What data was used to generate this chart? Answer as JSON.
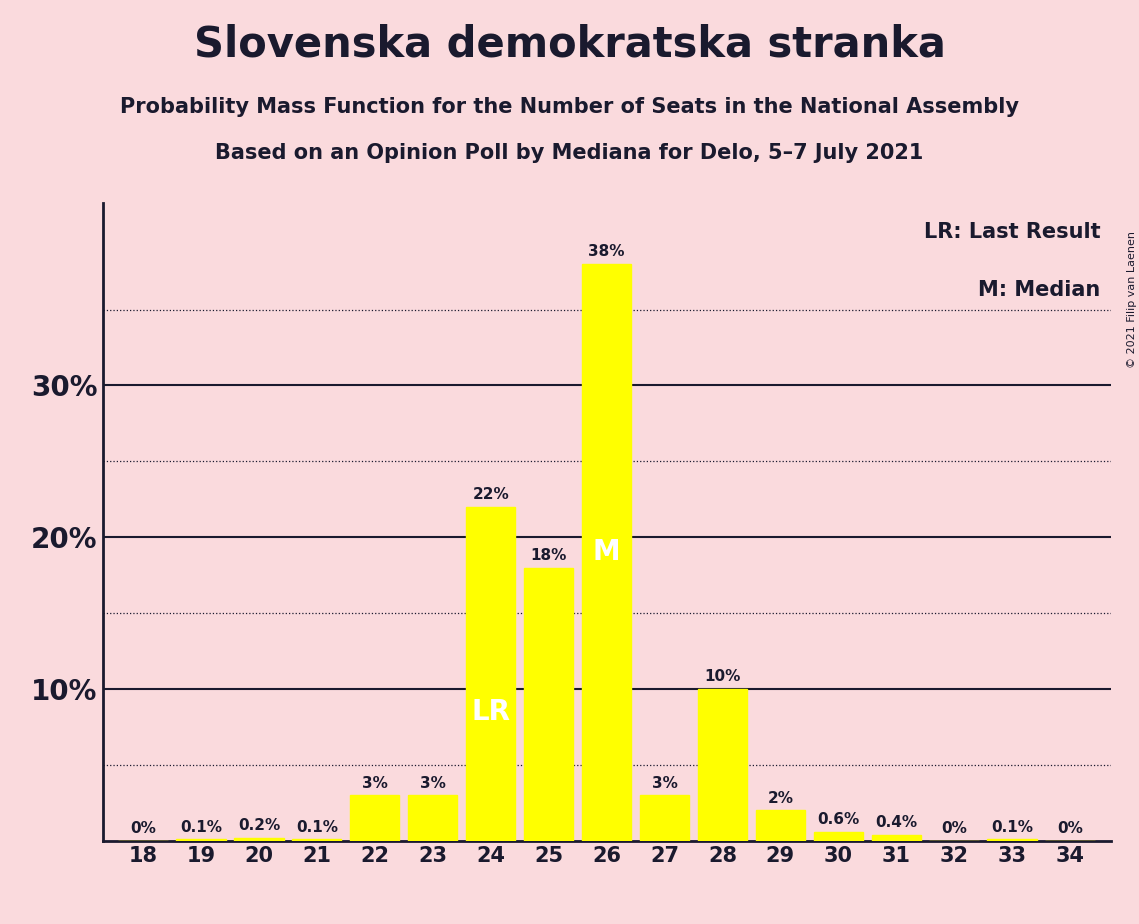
{
  "title": "Slovenska demokratska stranka",
  "subtitle1": "Probability Mass Function for the Number of Seats in the National Assembly",
  "subtitle2": "Based on an Opinion Poll by Mediana for Delo, 5–7 July 2021",
  "copyright": "© 2021 Filip van Laenen",
  "categories": [
    18,
    19,
    20,
    21,
    22,
    23,
    24,
    25,
    26,
    27,
    28,
    29,
    30,
    31,
    32,
    33,
    34
  ],
  "values": [
    0.0,
    0.1,
    0.2,
    0.1,
    3.0,
    3.0,
    22.0,
    18.0,
    38.0,
    3.0,
    10.0,
    2.0,
    0.6,
    0.4,
    0.0,
    0.1,
    0.0
  ],
  "bar_color": "#FFFF00",
  "background_color": "#FADADD",
  "text_color": "#1a1a2e",
  "label_texts": [
    "0%",
    "0.1%",
    "0.2%",
    "0.1%",
    "3%",
    "3%",
    "22%",
    "18%",
    "38%",
    "3%",
    "10%",
    "2%",
    "0.6%",
    "0.4%",
    "0%",
    "0.1%",
    "0%"
  ],
  "lr_bar": 24,
  "median_bar": 26,
  "ylim": [
    0,
    42
  ],
  "legend_lr": "LR: Last Result",
  "legend_m": "M: Median"
}
